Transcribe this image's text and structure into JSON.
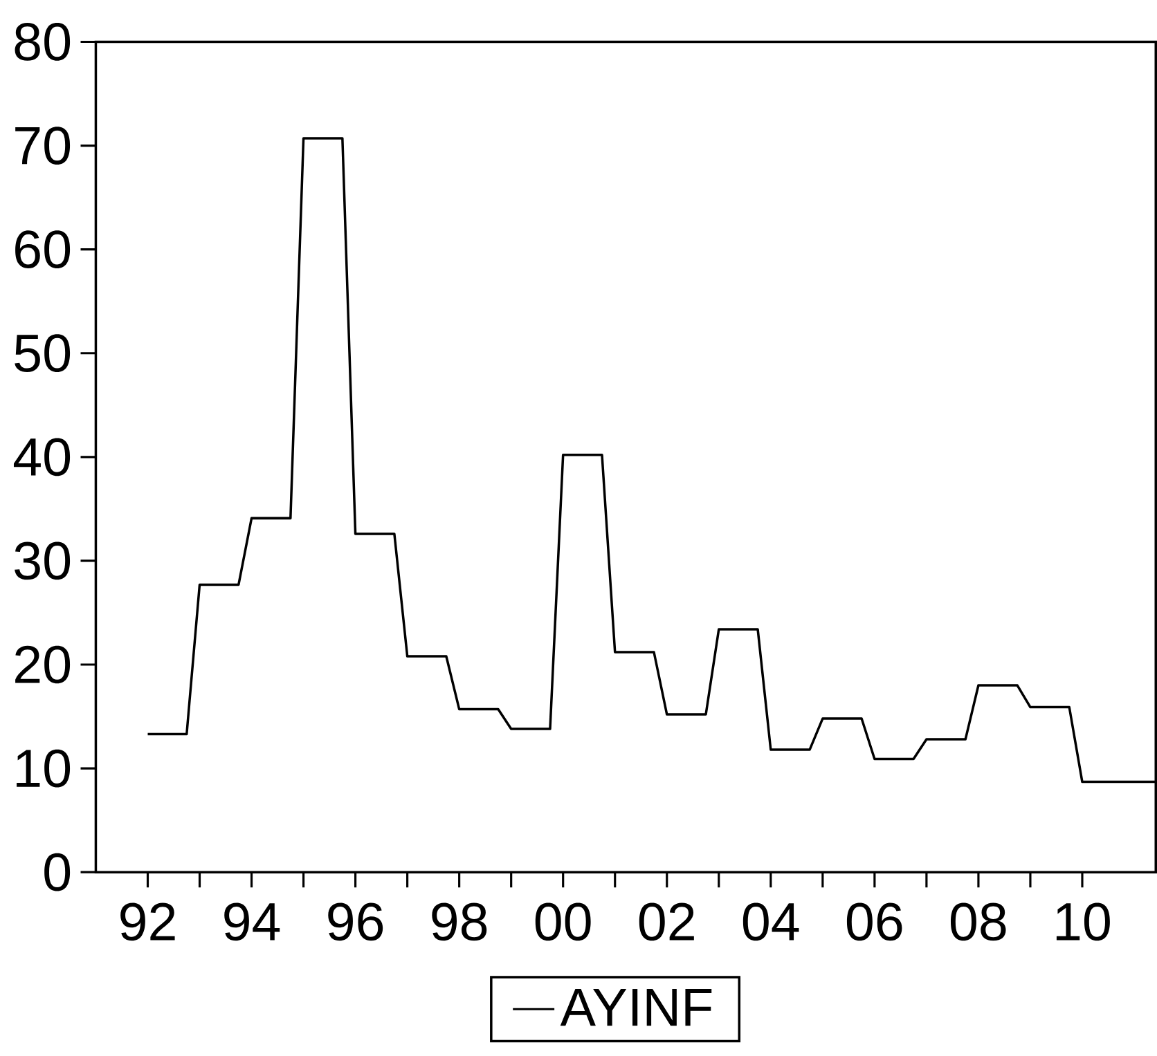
{
  "chart_data": {
    "type": "line",
    "x": [
      "1992-01",
      "1992-10",
      "1993-01",
      "1993-10",
      "1994-01",
      "1994-10",
      "1995-01",
      "1995-10",
      "1996-01",
      "1996-10",
      "1997-01",
      "1997-10",
      "1998-01",
      "1998-10",
      "1999-01",
      "1999-10",
      "2000-01",
      "2000-10",
      "2001-01",
      "2001-10",
      "2002-01",
      "2002-10",
      "2003-01",
      "2003-10",
      "2004-01",
      "2004-10",
      "2005-01",
      "2005-10",
      "2006-01",
      "2006-10",
      "2007-01",
      "2007-10",
      "2008-01",
      "2008-10",
      "2009-01",
      "2009-10",
      "2010-01",
      "2010-10",
      "2011-01",
      "2011-06"
    ],
    "series": [
      {
        "name": "AYINF",
        "color": "#000000",
        "values": [
          13.3,
          13.3,
          27.7,
          27.7,
          34.1,
          34.1,
          70.7,
          70.7,
          32.6,
          32.6,
          20.8,
          20.8,
          15.7,
          15.7,
          13.8,
          13.8,
          40.2,
          40.2,
          21.2,
          21.2,
          15.2,
          15.2,
          23.4,
          23.4,
          11.8,
          11.8,
          14.8,
          14.8,
          10.9,
          10.9,
          12.8,
          12.8,
          18.0,
          18.0,
          15.9,
          15.9,
          8.7,
          8.7,
          8.7,
          8.7
        ]
      }
    ],
    "xlim": [
      "1991-01",
      "2011-06"
    ],
    "xticks": [
      {
        "value": "1992-01",
        "label": "92"
      },
      {
        "value": "1994-01",
        "label": "94"
      },
      {
        "value": "1996-01",
        "label": "96"
      },
      {
        "value": "1998-01",
        "label": "98"
      },
      {
        "value": "2000-01",
        "label": "00"
      },
      {
        "value": "2002-01",
        "label": "02"
      },
      {
        "value": "2004-01",
        "label": "04"
      },
      {
        "value": "2006-01",
        "label": "06"
      },
      {
        "value": "2008-01",
        "label": "08"
      },
      {
        "value": "2010-01",
        "label": "10"
      }
    ],
    "ylim": [
      0,
      80
    ],
    "yticks": [
      0,
      10,
      20,
      30,
      40,
      50,
      60,
      70,
      80
    ],
    "legend": "bottom",
    "marker": "none",
    "line_style": "solid",
    "grid": false
  }
}
